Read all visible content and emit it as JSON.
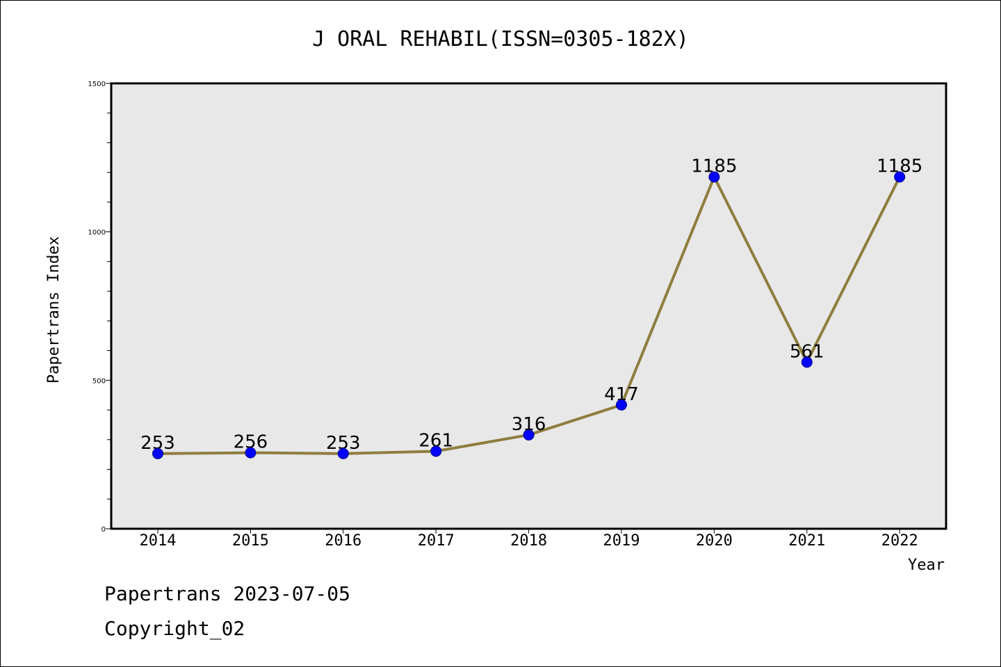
{
  "chart_data": {
    "type": "line",
    "title": "J ORAL REHABIL(ISSN=0305-182X)",
    "xlabel": "Year",
    "ylabel": "Papertrans Index",
    "categories": [
      "2014",
      "2015",
      "2016",
      "2017",
      "2018",
      "2019",
      "2020",
      "2021",
      "2022"
    ],
    "series": [
      {
        "values": [
          253,
          256,
          253,
          261,
          316,
          417,
          1185,
          561,
          1185
        ]
      }
    ],
    "ylim": [
      0,
      1500
    ],
    "yticks": [
      "0",
      "500",
      "1000",
      "1500"
    ],
    "grid": false,
    "colors": {
      "line": "#8e7d3e",
      "marker": "#0000ff",
      "plot_bg": "#e8e8e8"
    }
  },
  "footer": {
    "line1": "Papertrans 2023-07-05",
    "line2": "Copyright_02"
  }
}
